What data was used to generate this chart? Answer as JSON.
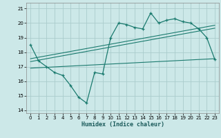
{
  "title": "",
  "xlabel": "Humidex (Indice chaleur)",
  "bg_color": "#cce8e8",
  "grid_color": "#aacccc",
  "line_color": "#1a7a6e",
  "xlim": [
    -0.5,
    23.5
  ],
  "ylim": [
    13.8,
    21.4
  ],
  "yticks": [
    14,
    15,
    16,
    17,
    18,
    19,
    20,
    21
  ],
  "xticks": [
    0,
    1,
    2,
    3,
    4,
    5,
    6,
    7,
    8,
    9,
    10,
    11,
    12,
    13,
    14,
    15,
    16,
    17,
    18,
    19,
    20,
    21,
    22,
    23
  ],
  "curve1_x": [
    0,
    1,
    2,
    3,
    4,
    5,
    6,
    7,
    8,
    9,
    10,
    11,
    12,
    13,
    14,
    15,
    16,
    17,
    18,
    19,
    20,
    21,
    22,
    23
  ],
  "curve1_y": [
    18.5,
    17.4,
    17.0,
    16.6,
    16.4,
    15.7,
    14.9,
    14.5,
    16.6,
    16.5,
    19.0,
    20.0,
    19.9,
    19.7,
    19.6,
    20.7,
    20.0,
    20.2,
    20.3,
    20.1,
    20.0,
    19.6,
    19.0,
    17.5
  ],
  "curve2_x": [
    0,
    23
  ],
  "curve2_y": [
    17.35,
    19.65
  ],
  "curve3_x": [
    0,
    23
  ],
  "curve3_y": [
    17.55,
    19.85
  ],
  "curve4_x": [
    0,
    23
  ],
  "curve4_y": [
    16.9,
    17.55
  ]
}
